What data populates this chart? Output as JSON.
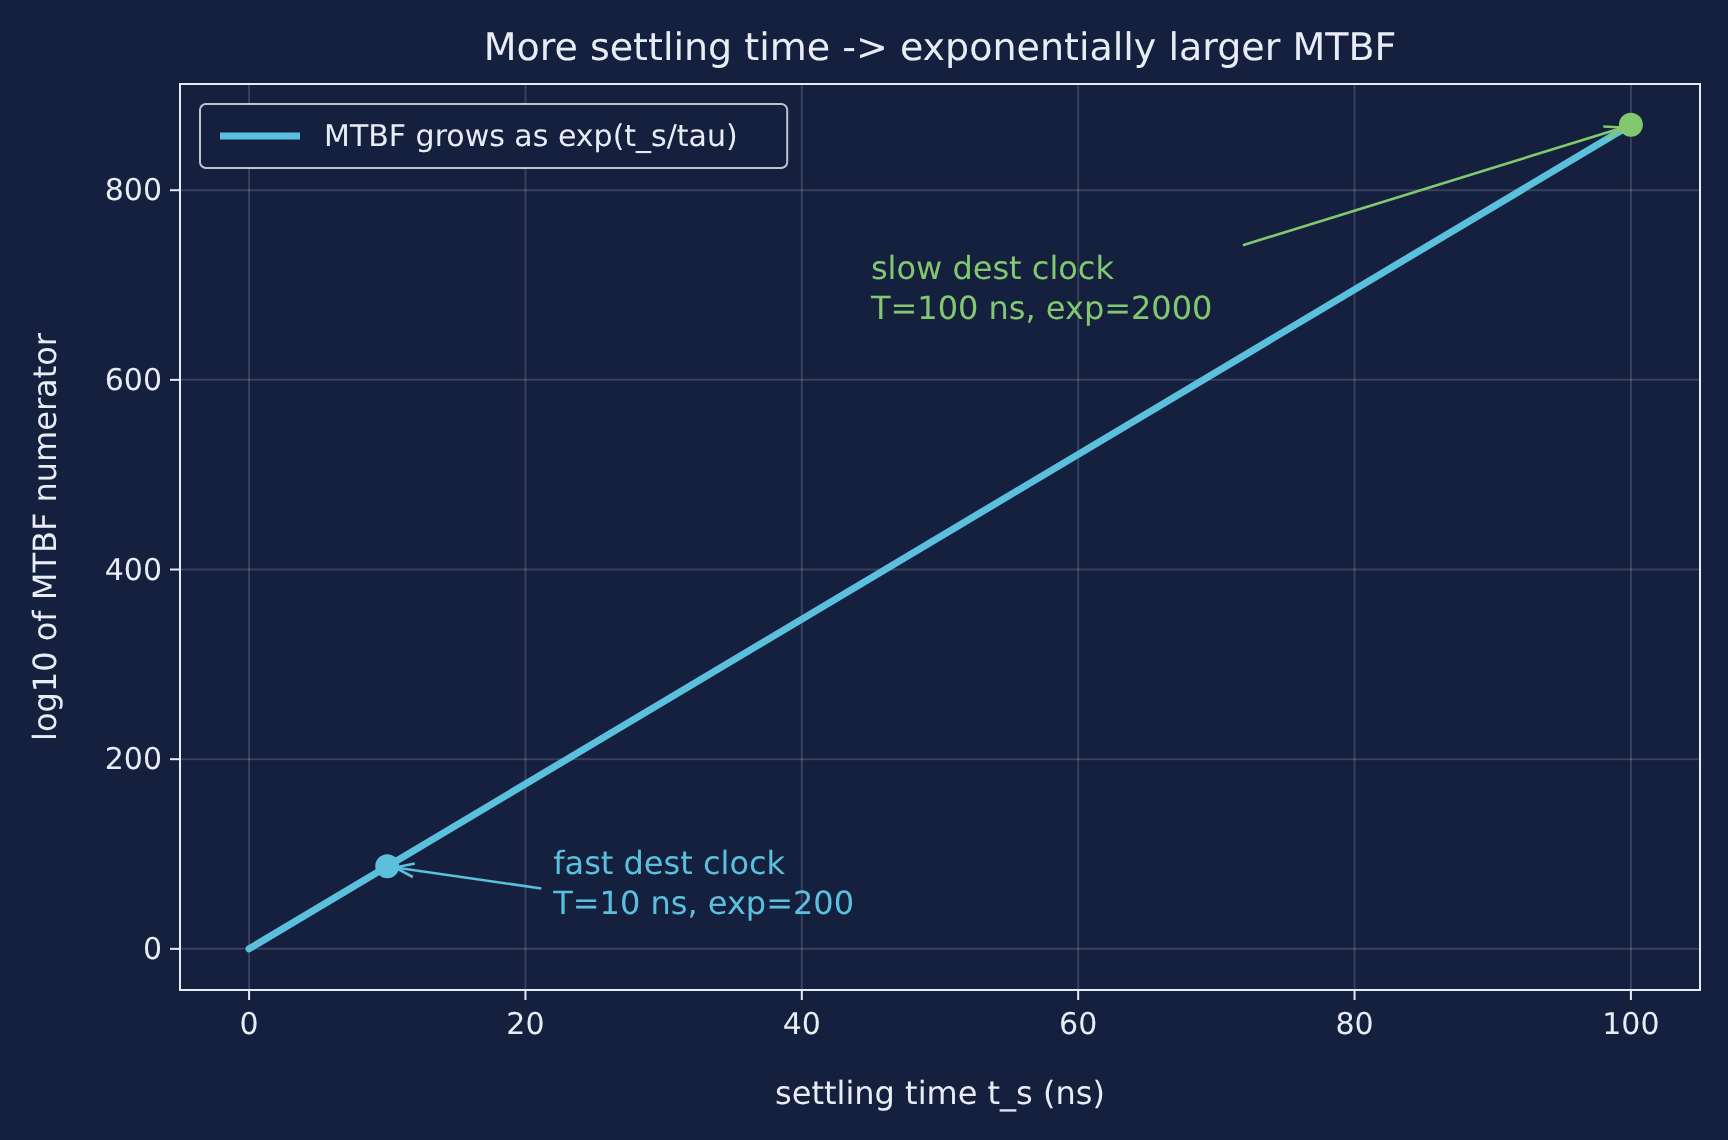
{
  "chart_data": {
    "type": "line",
    "title": "More settling time -> exponentially larger MTBF",
    "xlabel": "settling time  t_s  (ns)",
    "ylabel": "log10 of MTBF numerator",
    "series": [
      {
        "name": "MTBF grows as exp(t_s/tau)",
        "color": "#5bc0de",
        "x": [
          0,
          100
        ],
        "values": [
          0,
          869
        ]
      },
      {
        "type": "scatter",
        "color": "#5bc0de",
        "x": [
          10
        ],
        "values": [
          87
        ],
        "marker": "circle"
      },
      {
        "type": "scatter",
        "color": "#82c86e",
        "x": [
          100
        ],
        "values": [
          869
        ],
        "marker": "circle"
      }
    ],
    "annotations": [
      {
        "text": "fast dest clock\nT=10 ns, exp=200",
        "x": 10,
        "y": 86.9
      },
      {
        "text": "slow dest clock\nT=100 ns, exp=2000",
        "x": 100,
        "y": 868.6
      }
    ],
    "xlim": [
      -5,
      105
    ],
    "ylim": [
      -43.4,
      912
    ],
    "xticks": [
      0,
      20,
      40,
      60,
      80,
      100
    ],
    "yticks": [
      0,
      200,
      400,
      600,
      800
    ],
    "grid": true,
    "legend": "top left"
  }
}
